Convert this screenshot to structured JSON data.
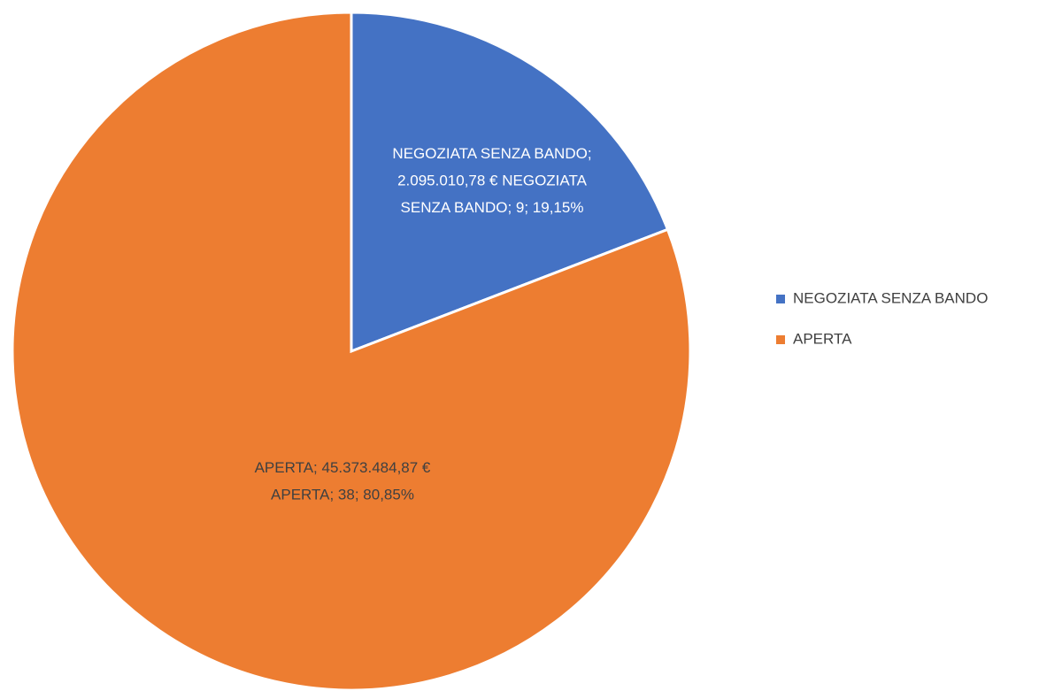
{
  "chart_data": {
    "type": "pie",
    "categories": [
      "NEGOZIATA SENZA BANDO",
      "APERTA"
    ],
    "values": [
      19.15,
      80.85
    ],
    "value_labels": [
      "19,15%",
      "80,85%"
    ],
    "colors": [
      "#4472c4",
      "#ed7d31"
    ],
    "data_labels": [
      [
        "NEGOZIATA SENZA BANDO;",
        "2.095.010,78 €    NEGOZIATA",
        "SENZA BANDO; 9; 19,15%"
      ],
      [
        "APERTA; 45.373.484,87 €",
        "APERTA; 38; 80,85%"
      ]
    ],
    "legend": "right"
  }
}
